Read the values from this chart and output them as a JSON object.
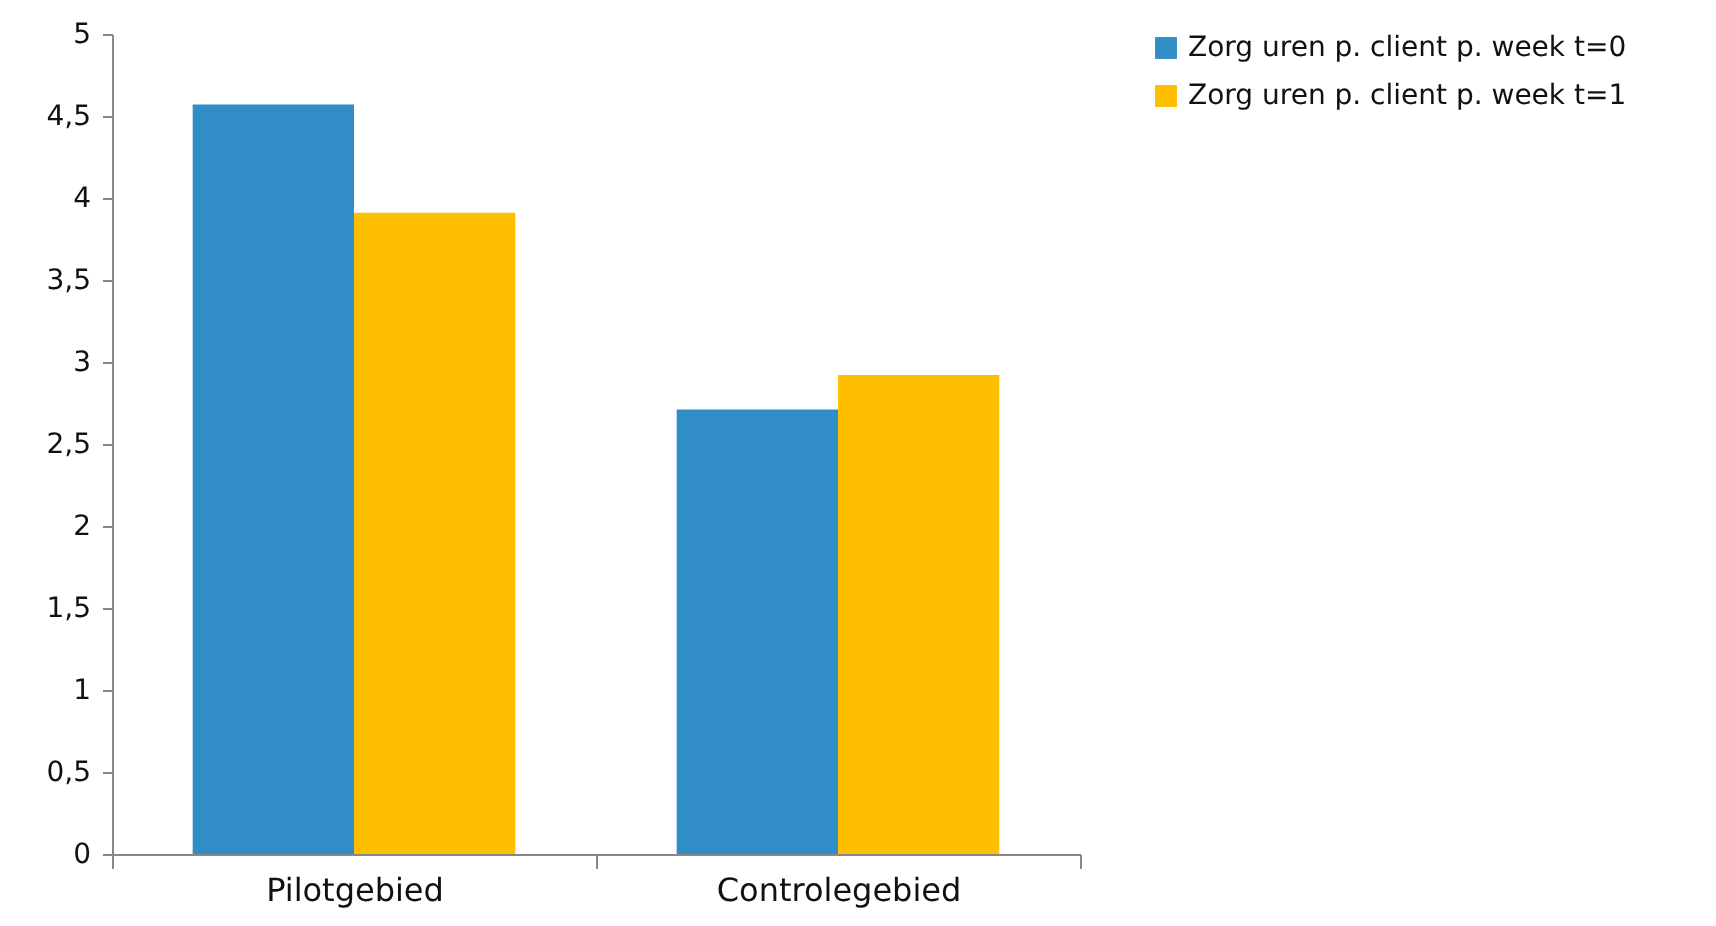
{
  "chart_data": {
    "type": "bar",
    "categories": [
      "Pilotgebied",
      "Controlegebied"
    ],
    "series": [
      {
        "name": "Zorg uren p. client p. week t=0",
        "color": "#318dc6",
        "values": [
          4.57,
          2.71
        ]
      },
      {
        "name": "Zorg uren p. client p. week t=1",
        "color": "#fdbf00",
        "values": [
          3.91,
          2.92
        ]
      }
    ],
    "ylim": [
      0,
      5
    ],
    "yticks": [
      0,
      {
        "value": 0.5,
        "label": "0,5"
      },
      1,
      {
        "value": 1.5,
        "label": "1,5"
      },
      2,
      {
        "value": 2.5,
        "label": "2,5"
      },
      3,
      {
        "value": 3.5,
        "label": "3,5"
      },
      4,
      {
        "value": 4.5,
        "label": "4,5"
      },
      5
    ],
    "grid": false,
    "legend": "right"
  }
}
